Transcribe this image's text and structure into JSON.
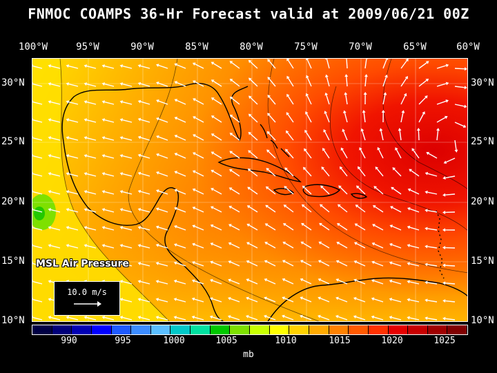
{
  "title": "FNMOC COAMPS 36-Hr Forecast valid at 2009/06/21 00Z",
  "lon_labels": [
    "100°W",
    "95°W",
    "90°W",
    "85°W",
    "80°W",
    "75°W",
    "70°W",
    "65°W",
    "60°W"
  ],
  "lat_labels": [
    "30°N",
    "25°N",
    "20°N",
    "15°N",
    "10°N"
  ],
  "overlay_label": "MSL Air Pressure",
  "reference_vector": "10.0 m/s",
  "colorbar": {
    "colors": [
      "#000044",
      "#00007a",
      "#0000b4",
      "#0000ff",
      "#1e5aff",
      "#3c8cff",
      "#5abeff",
      "#00c8c8",
      "#00e0a0",
      "#00c800",
      "#7ee000",
      "#c8ff00",
      "#ffff00",
      "#ffd200",
      "#ffaa00",
      "#ff8200",
      "#ff5a00",
      "#ff3200",
      "#e60000",
      "#c80000",
      "#a00000",
      "#800000"
    ],
    "labels": [
      "990",
      "995",
      "1000",
      "1005",
      "1010",
      "1015",
      "1020",
      "1025"
    ],
    "units": "mb"
  }
}
